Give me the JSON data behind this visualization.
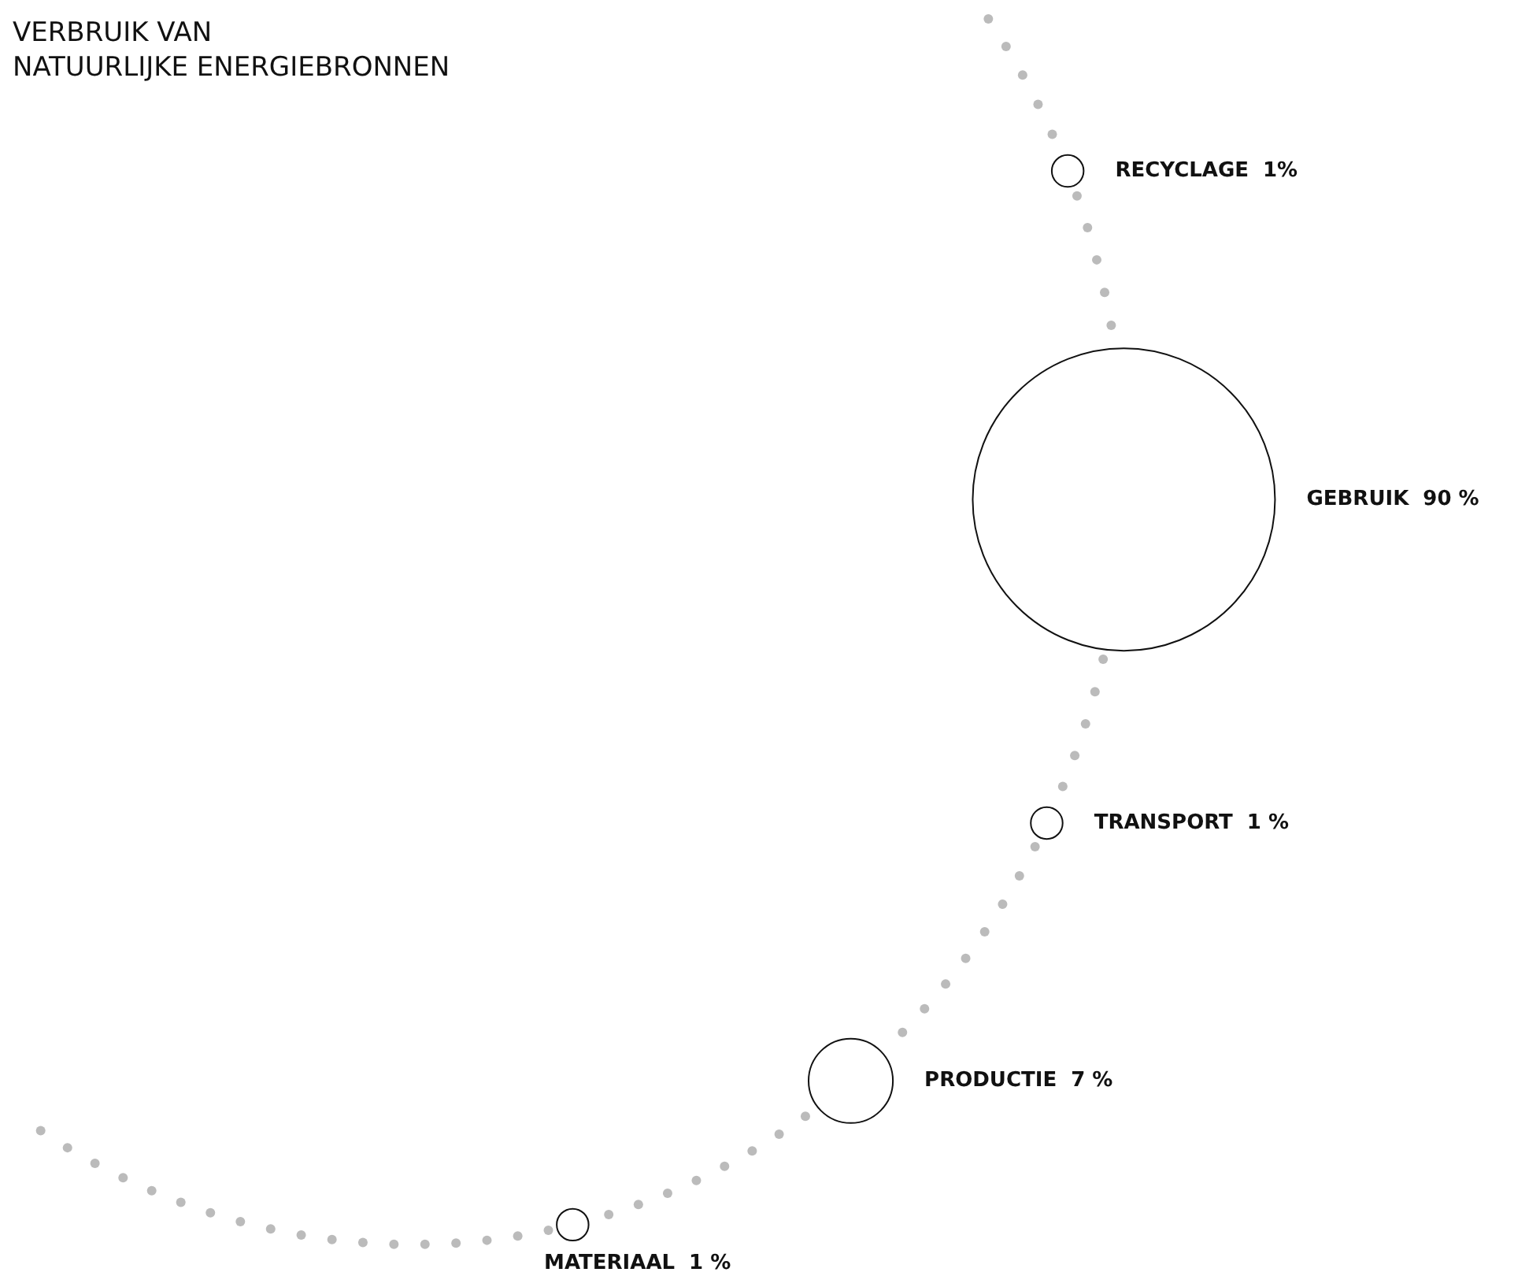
{
  "chart_data": {
    "type": "other",
    "title": "VERBRUIK VAN\nNATUURLIJKE ENERGIEBRONNEN",
    "categories": [
      "RECYCLAGE",
      "GEBRUIK",
      "TRANSPORT",
      "PRODUCTIE",
      "MATERIAAL"
    ],
    "values": [
      1,
      90,
      1,
      7,
      1
    ],
    "value_labels": [
      "1%",
      "90 %",
      "1 %",
      "7 %",
      "1 %"
    ]
  }
}
